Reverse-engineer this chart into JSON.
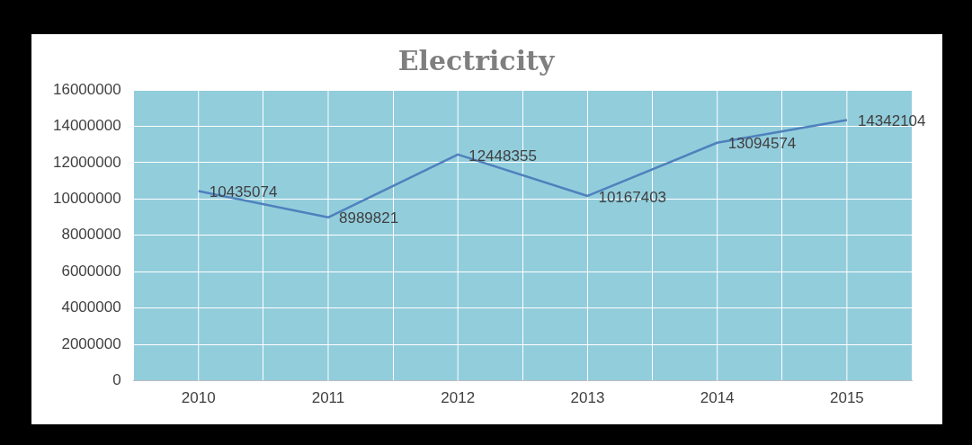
{
  "chart_data": {
    "type": "line",
    "title": "Electricity",
    "categories": [
      "2010",
      "2011",
      "2012",
      "2013",
      "2014",
      "2015"
    ],
    "values": [
      10435074,
      8989821,
      12448355,
      10167403,
      13094574,
      14342104
    ],
    "color": "#4f81bd",
    "ylim": [
      0,
      16000000
    ],
    "yticks": [
      0,
      2000000,
      4000000,
      6000000,
      8000000,
      10000000,
      12000000,
      14000000,
      16000000
    ],
    "grid": true,
    "legend": false,
    "marker": "none",
    "line_style": "solid",
    "data_labels": true
  }
}
